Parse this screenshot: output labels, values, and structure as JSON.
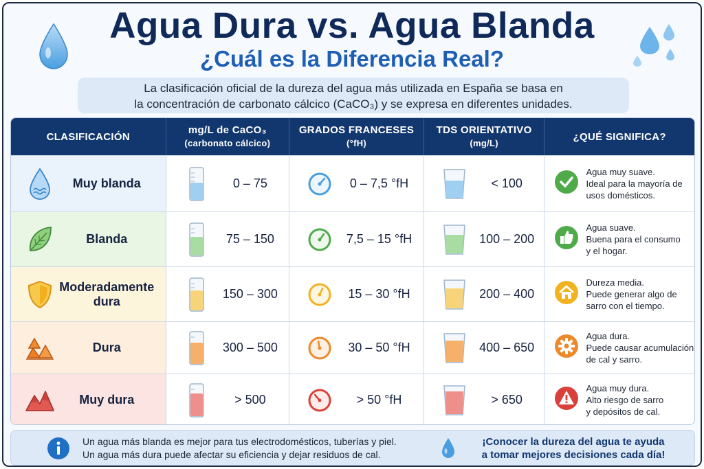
{
  "header": {
    "title": "Agua Dura vs. Agua Blanda",
    "subtitle": "¿Cuál es la Diferencia Real?",
    "intro_line1": "La clasificación oficial de la dureza del agua más utilizada en España se basa en",
    "intro_line2": "la concentración de carbonato cálcico (CaCO₃) y se expresa en diferentes unidades."
  },
  "columns": {
    "classification": "CLASIFICACIÓN",
    "mgl_line1": "mg/L de CaCO₃",
    "mgl_line2": "(carbonato cálcico)",
    "fh_line1": "GRADOS FRANCESES",
    "fh_line2": "(°fH)",
    "tds_line1": "TDS ORIENTATIVO",
    "tds_line2": "(mg/L)",
    "meaning": "¿QUÉ SIGNIFICA?"
  },
  "rows": [
    {
      "name": "Muy blanda",
      "icon": "water-drop-icon",
      "mgl": "0 – 75",
      "fh": "0 – 7,5 °fH",
      "tds": "< 100",
      "meaning_line1": "Agua muy suave.",
      "meaning_line2": "Ideal para la mayoría de",
      "meaning_line3": "usos domésticos.",
      "meaning_icon": "check-icon",
      "bg": "#eaf3fc",
      "color": "#4a9ee0",
      "liquid": "#9fd0f2"
    },
    {
      "name": "Blanda",
      "icon": "leaf-icon",
      "mgl": "75 – 150",
      "fh": "7,5 – 15 °fH",
      "tds": "100 – 200",
      "meaning_line1": "Agua suave.",
      "meaning_line2": "Buena para el consumo",
      "meaning_line3": "y el hogar.",
      "meaning_icon": "thumbs-up-icon",
      "bg": "#eaf6e4",
      "color": "#4faa4a",
      "liquid": "#a9dca2"
    },
    {
      "name": "Moderadamente dura",
      "name_line1": "Moderadamente",
      "name_line2": "dura",
      "icon": "shield-icon",
      "mgl": "150 – 300",
      "fh": "15 – 30 °fH",
      "tds": "200 – 400",
      "meaning_line1": "Dureza media.",
      "meaning_line2": "Puede generar algo de",
      "meaning_line3": "sarro con el tiempo.",
      "meaning_icon": "house-icon",
      "bg": "#fdf4dc",
      "color": "#f1b21f",
      "liquid": "#f7d47a"
    },
    {
      "name": "Dura",
      "icon": "rocks-icon",
      "mgl": "300 – 500",
      "fh": "30 – 50 °fH",
      "tds": "400 – 650",
      "meaning_line1": "Agua dura.",
      "meaning_line2": "Puede causar acumulación",
      "meaning_line3": "de cal y sarro.",
      "meaning_icon": "gear-icon",
      "bg": "#fdeedd",
      "color": "#ec8a2b",
      "liquid": "#f5b06a"
    },
    {
      "name": "Muy dura",
      "icon": "mountain-icon",
      "mgl": "> 500",
      "fh": "> 50 °fH",
      "tds": "> 650",
      "meaning_line1": "Agua muy dura.",
      "meaning_line2": "Alto riesgo de sarro",
      "meaning_line3": "y depósitos de cal.",
      "meaning_icon": "warning-icon",
      "bg": "#fbe4e2",
      "color": "#d9413a",
      "liquid": "#ef8f8b"
    }
  ],
  "footer": {
    "note_line1": "Un agua más blanda es mejor para tus electrodomésticos, tuberías y piel.",
    "note_line2": "Un agua más dura puede afectar su eficiencia y dejar residuos de cal.",
    "cta_line1": "¡Conocer la dureza del agua te ayuda",
    "cta_line2": "a tomar mejores decisiones cada día!"
  }
}
